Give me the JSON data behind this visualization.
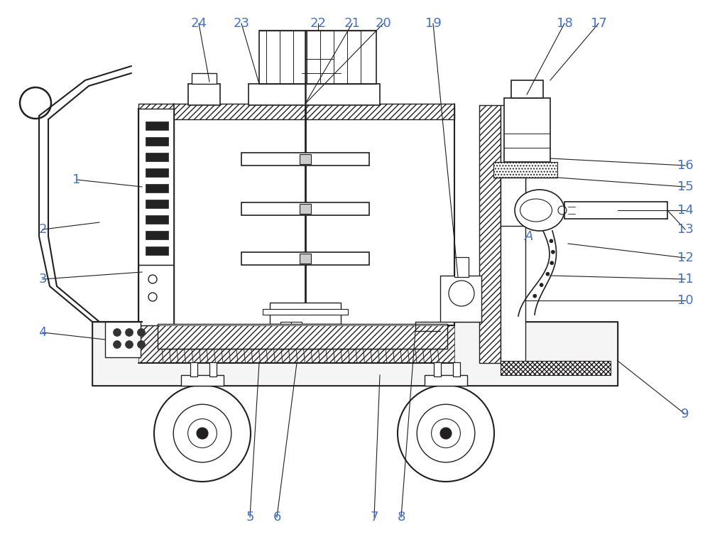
{
  "bg_color": "#ffffff",
  "line_color": "#231f20",
  "label_color": "#4472c4",
  "figsize": [
    10.0,
    7.63
  ],
  "dpi": 100
}
